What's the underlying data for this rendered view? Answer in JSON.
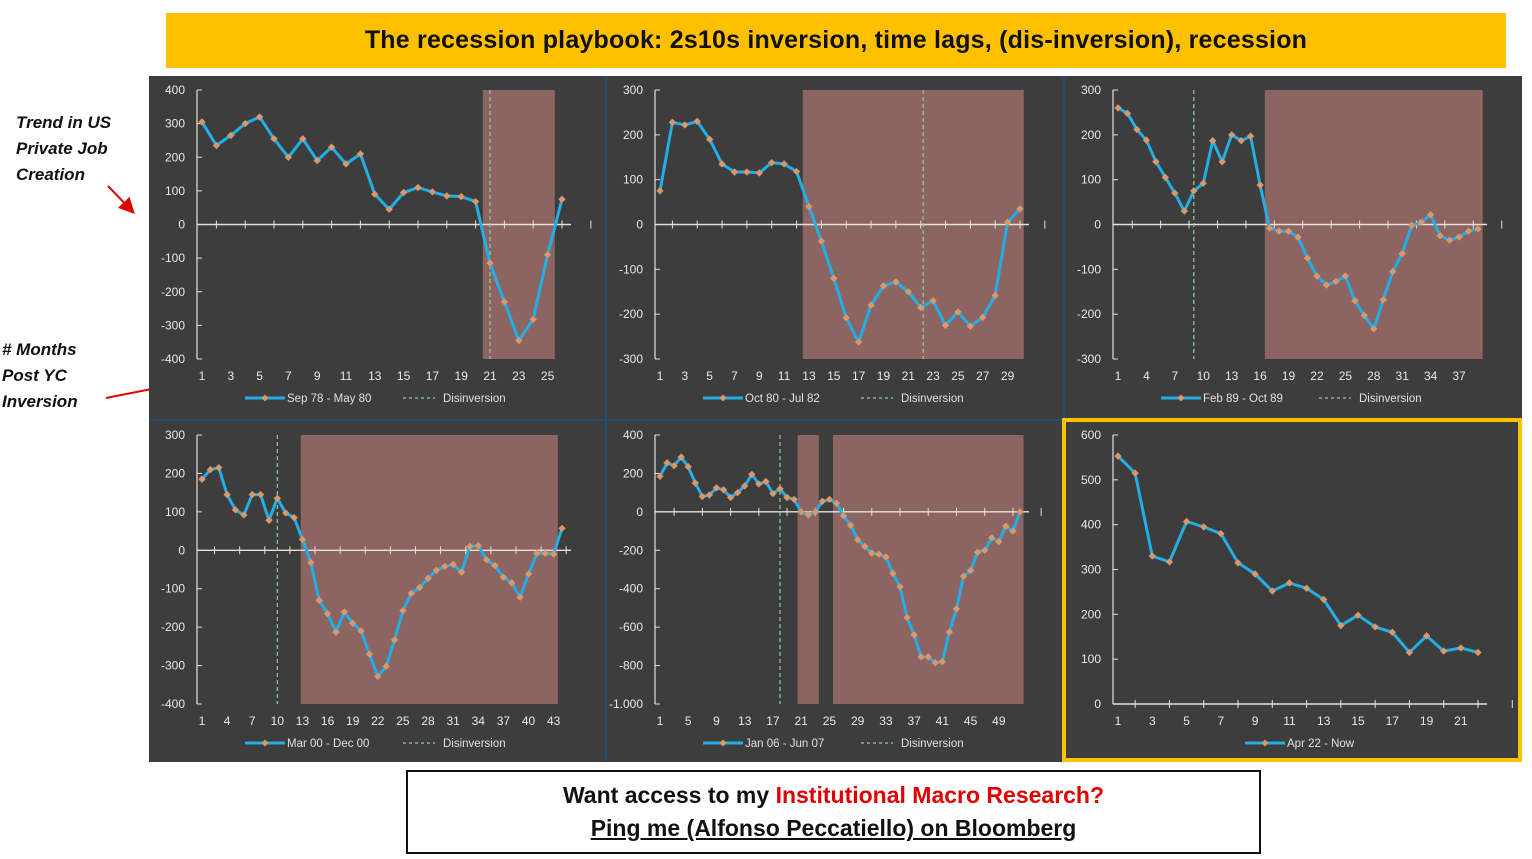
{
  "header": {
    "title": "The recession playbook: 2s10s inversion, time lags, (dis-inversion), recession",
    "title_bg": "#FFC000"
  },
  "annotations": {
    "y_axis_note": [
      "Trend in US",
      "Private Job",
      "Creation"
    ],
    "x_axis_note": [
      "# Months",
      "Post YC",
      "Inversion"
    ],
    "arrow_color": "#e00000"
  },
  "colors": {
    "panel_bg": "#3d3d3d",
    "line": "#22aee6",
    "marker": "#d9976a",
    "recession_shade": "#8c6462",
    "disinversion_line": "#8fd18f",
    "axis": "#e8e0d8",
    "divider": "#1f4e79",
    "highlight_border": "#FFC000"
  },
  "footer": {
    "line1_prefix": "Want access to my ",
    "line1_highlight": "Institutional Macro Research?",
    "line2": "Ping me (Alfonso Peccatiello) on Bloomberg"
  },
  "chart_data": [
    {
      "type": "line",
      "title": "",
      "series_name": "Sep 78 - May 80",
      "legend": [
        "Sep 78 - May 80",
        "Disinversion"
      ],
      "xlabel": "# Months Post YC Inversion",
      "ylabel": "Trend in US Private Job Creation",
      "ylim": [
        -400,
        400
      ],
      "yticks": [
        400,
        300,
        200,
        100,
        0,
        -100,
        -200,
        -300,
        -400
      ],
      "yticklabels": [
        "400",
        "300",
        "200",
        "100",
        "0",
        "-100",
        "-200",
        "-300",
        "-400"
      ],
      "n_points": 26,
      "xtick_labels": [
        1,
        3,
        5,
        7,
        9,
        11,
        13,
        15,
        17,
        19,
        21,
        23,
        25
      ],
      "x": [
        1,
        2,
        3,
        4,
        5,
        6,
        7,
        8,
        9,
        10,
        11,
        12,
        13,
        14,
        15,
        16,
        17,
        18,
        19,
        20,
        21,
        22,
        23,
        24,
        25,
        26
      ],
      "values": [
        305,
        235,
        265,
        300,
        320,
        255,
        200,
        255,
        190,
        230,
        180,
        210,
        90,
        45,
        95,
        110,
        97,
        85,
        83,
        68,
        -115,
        -230,
        -345,
        -282,
        -90,
        75
      ],
      "recession_shading": [
        [
          20.5,
          25.5
        ]
      ],
      "disinversion_x": 21
    },
    {
      "type": "line",
      "title": "",
      "series_name": "Oct 80 - Jul 82",
      "legend": [
        "Oct 80 - Jul 82",
        "Disinversion"
      ],
      "ylim": [
        -300,
        300
      ],
      "yticks": [
        300,
        200,
        100,
        0,
        -100,
        -200,
        -300
      ],
      "yticklabels": [
        "300",
        "200",
        "100",
        "0",
        "-100",
        "-200",
        "-300"
      ],
      "n_points": 30,
      "xtick_labels": [
        1,
        3,
        5,
        7,
        9,
        11,
        13,
        15,
        17,
        19,
        21,
        23,
        25,
        27,
        29
      ],
      "x": [
        1,
        2,
        3,
        4,
        5,
        6,
        7,
        8,
        9,
        10,
        11,
        12,
        13,
        14,
        15,
        16,
        17,
        18,
        19,
        20,
        21,
        22,
        23,
        24,
        25,
        26,
        27,
        28,
        29,
        30
      ],
      "values": [
        75,
        228,
        222,
        230,
        190,
        135,
        117,
        117,
        115,
        138,
        135,
        118,
        40,
        -37,
        -120,
        -208,
        -262,
        -180,
        -137,
        -128,
        -150,
        -185,
        -170,
        -225,
        -195,
        -227,
        -207,
        -158,
        5,
        35
      ],
      "recession_shading": [
        [
          12.5,
          30.3
        ]
      ],
      "disinversion_x": 22.2
    },
    {
      "type": "line",
      "title": "",
      "series_name": "Feb 89 - Oct 89",
      "legend": [
        "Feb 89 - Oct 89",
        "Disinversion"
      ],
      "ylim": [
        -300,
        300
      ],
      "yticks": [
        300,
        200,
        100,
        0,
        -100,
        -200,
        -300
      ],
      "yticklabels": [
        "300",
        "200",
        "100",
        "0",
        "-100",
        "-200",
        "-300"
      ],
      "n_points": 39,
      "xtick_labels": [
        1,
        4,
        7,
        10,
        13,
        16,
        19,
        22,
        25,
        28,
        31,
        34,
        37
      ],
      "x": [
        1,
        2,
        3,
        4,
        5,
        6,
        7,
        8,
        9,
        10,
        11,
        12,
        13,
        14,
        15,
        16,
        17,
        18,
        19,
        20,
        21,
        22,
        23,
        24,
        25,
        26,
        27,
        28,
        29,
        30,
        31,
        32,
        33,
        34,
        35,
        36,
        37,
        38,
        39
      ],
      "values": [
        260,
        248,
        212,
        188,
        140,
        105,
        70,
        30,
        75,
        92,
        187,
        140,
        200,
        187,
        197,
        88,
        -8,
        -15,
        -15,
        -28,
        -75,
        -115,
        -135,
        -127,
        -115,
        -170,
        -203,
        -233,
        -168,
        -105,
        -65,
        -2,
        5,
        22,
        -25,
        -35,
        -28,
        -15,
        -10
      ],
      "recession_shading": [
        [
          16.5,
          39.5
        ]
      ],
      "disinversion_x": 9
    },
    {
      "type": "line",
      "title": "",
      "series_name": "Mar 00 - Dec 00",
      "legend": [
        "Mar 00 - Dec 00",
        "Disinversion"
      ],
      "ylim": [
        -400,
        300
      ],
      "yticks": [
        300,
        200,
        100,
        0,
        -100,
        -200,
        -300,
        -400
      ],
      "yticklabels": [
        "300",
        "200",
        "100",
        "0",
        "-100",
        "-200",
        "-300",
        "-400"
      ],
      "n_points": 44,
      "xtick_labels": [
        1,
        4,
        7,
        10,
        13,
        16,
        19,
        22,
        25,
        28,
        31,
        34,
        37,
        40,
        43
      ],
      "x": [
        1,
        2,
        3,
        4,
        5,
        6,
        7,
        8,
        9,
        10,
        11,
        12,
        13,
        14,
        15,
        16,
        17,
        18,
        19,
        20,
        21,
        22,
        23,
        24,
        25,
        26,
        27,
        28,
        29,
        30,
        31,
        32,
        33,
        34,
        35,
        36,
        37,
        38,
        39,
        40,
        41,
        42,
        43,
        44
      ],
      "values": [
        185,
        210,
        215,
        145,
        105,
        92,
        145,
        145,
        78,
        135,
        97,
        85,
        28,
        -32,
        -130,
        -165,
        -213,
        -160,
        -190,
        -210,
        -270,
        -328,
        -302,
        -233,
        -157,
        -112,
        -97,
        -73,
        -52,
        -42,
        -37,
        -57,
        10,
        12,
        -25,
        -40,
        -70,
        -85,
        -122,
        -62,
        -8,
        -8,
        -10,
        57
      ],
      "recession_shading": [
        [
          12.8,
          43.5
        ]
      ],
      "disinversion_x": 10
    },
    {
      "type": "line",
      "title": "",
      "series_name": "Jan 06 - Jun 07",
      "legend": [
        "Jan 06 - Jun 07",
        "Disinversion"
      ],
      "ylim": [
        -1000,
        400
      ],
      "yticks": [
        400,
        200,
        0,
        -200,
        -400,
        -600,
        -800,
        -1000
      ],
      "yticklabels": [
        "400",
        "200",
        "0",
        "-200",
        "-400",
        "-600",
        "-800",
        "-1.000"
      ],
      "n_points": 52,
      "xtick_labels": [
        1,
        5,
        9,
        13,
        17,
        21,
        25,
        29,
        33,
        37,
        41,
        45,
        49
      ],
      "x": [
        1,
        2,
        3,
        4,
        5,
        6,
        7,
        8,
        9,
        10,
        11,
        12,
        13,
        14,
        15,
        16,
        17,
        18,
        19,
        20,
        21,
        22,
        23,
        24,
        25,
        26,
        27,
        28,
        29,
        30,
        31,
        32,
        33,
        34,
        35,
        36,
        37,
        38,
        39,
        40,
        41,
        42,
        43,
        44,
        45,
        46,
        47,
        48,
        49,
        50,
        51,
        52
      ],
      "values": [
        185,
        255,
        240,
        285,
        235,
        150,
        80,
        88,
        125,
        115,
        75,
        100,
        135,
        195,
        145,
        158,
        95,
        120,
        75,
        65,
        0,
        -15,
        0,
        55,
        65,
        45,
        -20,
        -70,
        -145,
        -180,
        -215,
        -220,
        -235,
        -320,
        -390,
        -550,
        -640,
        -755,
        -755,
        -785,
        -780,
        -625,
        -505,
        -335,
        -305,
        -210,
        -200,
        -135,
        -155,
        -75,
        -100,
        0
      ],
      "recession_shading": [
        [
          20.5,
          23.5
        ],
        [
          25.5,
          52.5
        ]
      ],
      "disinversion_x": 18
    },
    {
      "type": "line",
      "title": "",
      "series_name": "Apr 22 - Now",
      "legend": [
        "Apr 22 - Now"
      ],
      "ylim": [
        0,
        600
      ],
      "yticks": [
        600,
        500,
        400,
        300,
        200,
        100,
        0
      ],
      "yticklabels": [
        "600",
        "500",
        "400",
        "300",
        "200",
        "100",
        "0"
      ],
      "n_points": 22,
      "xtick_labels": [
        1,
        3,
        5,
        7,
        9,
        11,
        13,
        15,
        17,
        19,
        21
      ],
      "x": [
        1,
        2,
        3,
        4,
        5,
        6,
        7,
        8,
        9,
        10,
        11,
        12,
        13,
        14,
        15,
        16,
        17,
        18,
        19,
        20,
        21,
        22
      ],
      "values": [
        553,
        515,
        330,
        317,
        407,
        395,
        380,
        315,
        290,
        252,
        270,
        258,
        233,
        175,
        198,
        172,
        160,
        115,
        152,
        118,
        125,
        115
      ],
      "recession_shading": [],
      "disinversion_x": null,
      "highlighted": true
    }
  ]
}
